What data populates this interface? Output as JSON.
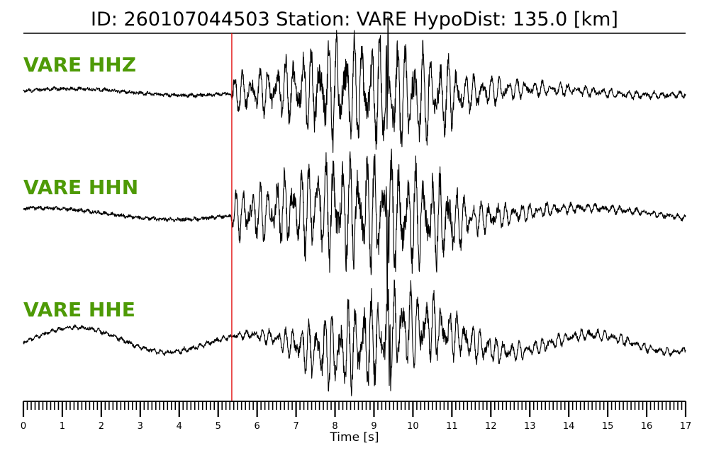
{
  "chart_data": {
    "type": "line",
    "title": "ID: 260107044503   Station: VARE   HypoDist:   135.0 [km]",
    "xlabel": "Time [s]",
    "xlim": [
      0,
      17
    ],
    "x_ticks": [
      "0",
      "1",
      "2",
      "3",
      "4",
      "5",
      "6",
      "7",
      "8",
      "9",
      "10",
      "11",
      "12",
      "13",
      "14",
      "15",
      "16",
      "17"
    ],
    "label_color": "#4e9a06",
    "pick_line": {
      "time": 5.35,
      "color": "#e00000"
    },
    "series": [
      {
        "name": "VARE HHZ",
        "amplitude_profile": [
          [
            0,
            0.02
          ],
          [
            5.3,
            0.02
          ],
          [
            5.4,
            0.35
          ],
          [
            6.6,
            0.5
          ],
          [
            7.4,
            0.8
          ],
          [
            8.0,
            1.0
          ],
          [
            9.3,
            1.0
          ],
          [
            10.2,
            0.9
          ],
          [
            11.0,
            0.65
          ],
          [
            11.4,
            0.35
          ],
          [
            12.5,
            0.2
          ],
          [
            14.0,
            0.1
          ],
          [
            17,
            0.05
          ]
        ],
        "dominant_period": 0.22,
        "low_frequency": [
          {
            "amp": 0.06,
            "period": 6.0,
            "phase": 0.3
          }
        ],
        "peak_time": 9.35,
        "noise": 0.05
      },
      {
        "name": "VARE HHN",
        "amplitude_profile": [
          [
            0,
            0.02
          ],
          [
            5.3,
            0.02
          ],
          [
            5.4,
            0.4
          ],
          [
            6.5,
            0.55
          ],
          [
            7.4,
            0.85
          ],
          [
            8.0,
            1.0
          ],
          [
            9.3,
            1.0
          ],
          [
            10.2,
            0.9
          ],
          [
            11.0,
            0.7
          ],
          [
            11.4,
            0.35
          ],
          [
            12.5,
            0.18
          ],
          [
            14.0,
            0.08
          ],
          [
            17,
            0.04
          ]
        ],
        "dominant_period": 0.21,
        "low_frequency": [
          {
            "amp": 0.1,
            "period": 7.0,
            "phase": 1.2
          }
        ],
        "peak_time": 9.35,
        "noise": 0.05
      },
      {
        "name": "VARE HHE",
        "amplitude_profile": [
          [
            0,
            0.03
          ],
          [
            5.3,
            0.05
          ],
          [
            6.2,
            0.15
          ],
          [
            6.8,
            0.3
          ],
          [
            7.5,
            0.7
          ],
          [
            8.3,
            0.95
          ],
          [
            9.4,
            1.0
          ],
          [
            10.3,
            0.75
          ],
          [
            11.3,
            0.45
          ],
          [
            12.5,
            0.22
          ],
          [
            14.0,
            0.12
          ],
          [
            17,
            0.07
          ]
        ],
        "dominant_period": 0.2,
        "low_frequency": [
          {
            "amp": 0.22,
            "period": 4.4,
            "phase": -0.4
          },
          {
            "amp": 0.08,
            "period": 9.0,
            "phase": 0.8
          }
        ],
        "peak_time": 9.4,
        "noise": 0.06
      }
    ]
  }
}
